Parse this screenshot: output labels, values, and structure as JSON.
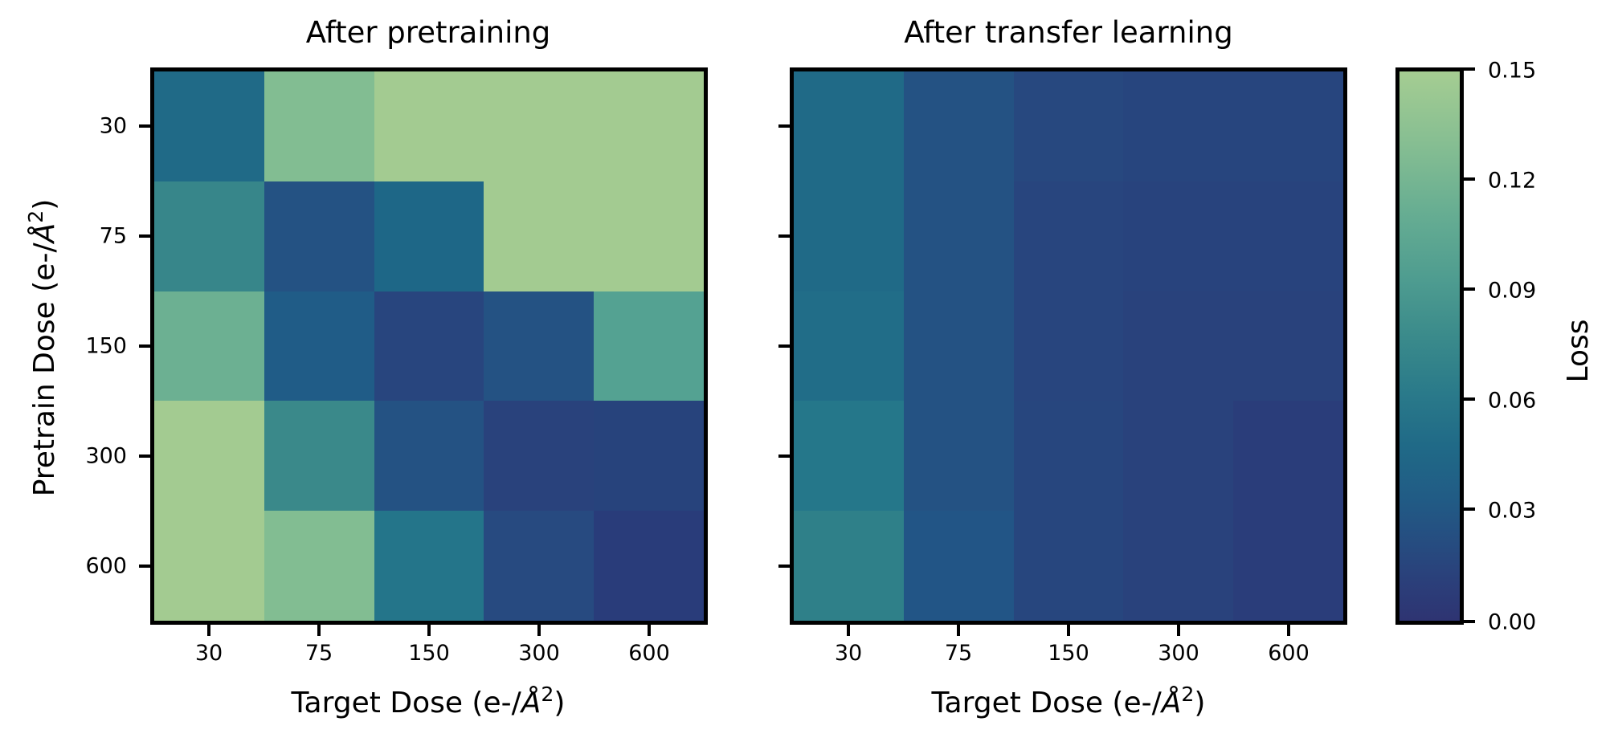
{
  "chart_data": [
    {
      "type": "heatmap",
      "title": "After pretraining",
      "xlabel": "Target Dose (e-/Å²)",
      "ylabel": "Pretrain Dose (e-/Å²)",
      "x_categories": [
        "30",
        "75",
        "150",
        "300",
        "600"
      ],
      "y_categories": [
        "30",
        "75",
        "150",
        "300",
        "600"
      ],
      "values": [
        [
          0.05,
          0.13,
          0.15,
          0.15,
          0.15
        ],
        [
          0.08,
          0.03,
          0.05,
          0.15,
          0.15
        ],
        [
          0.12,
          0.04,
          0.02,
          0.03,
          0.1
        ],
        [
          0.15,
          0.08,
          0.03,
          0.015,
          0.015
        ],
        [
          0.15,
          0.13,
          0.06,
          0.022,
          0.01
        ]
      ],
      "colors": [
        [
          "#206a87",
          "#82bd92",
          "#a3cb91",
          "#a3cb91",
          "#a3cb91"
        ],
        [
          "#37868a",
          "#245283",
          "#1e6787",
          "#a3cb91",
          "#a3cb91"
        ],
        [
          "#6cb092",
          "#205c87",
          "#28457e",
          "#245283",
          "#54a292"
        ],
        [
          "#a3cb91",
          "#3a898a",
          "#245283",
          "#29427c",
          "#27437c"
        ],
        [
          "#a3cb91",
          "#82bd92",
          "#24758a",
          "#274a80",
          "#293c7a"
        ]
      ]
    },
    {
      "type": "heatmap",
      "title": "After transfer learning",
      "xlabel": "Target Dose (e-/Å²)",
      "ylabel": "",
      "x_categories": [
        "30",
        "75",
        "150",
        "300",
        "600"
      ],
      "y_categories": [
        "30",
        "75",
        "150",
        "300",
        "600"
      ],
      "values": [
        [
          0.05,
          0.03,
          0.022,
          0.02,
          0.02
        ],
        [
          0.05,
          0.03,
          0.02,
          0.018,
          0.018
        ],
        [
          0.055,
          0.03,
          0.02,
          0.016,
          0.016
        ],
        [
          0.06,
          0.03,
          0.02,
          0.016,
          0.012
        ],
        [
          0.07,
          0.033,
          0.02,
          0.016,
          0.012
        ]
      ],
      "colors": [
        [
          "#206a87",
          "#245283",
          "#27487f",
          "#27457e",
          "#27457e"
        ],
        [
          "#206a87",
          "#245283",
          "#28457e",
          "#28437d",
          "#28437d"
        ],
        [
          "#216d88",
          "#245283",
          "#28457e",
          "#29427c",
          "#29427c"
        ],
        [
          "#25778a",
          "#245283",
          "#27467e",
          "#29427c",
          "#2a3d7a"
        ],
        [
          "#2f8089",
          "#225586",
          "#27467e",
          "#29427c",
          "#2a3d7a"
        ]
      ]
    }
  ],
  "figure": {
    "left_title": "After pretraining",
    "right_title": "After transfer learning",
    "xlabel_prefix": "Target Dose (e-/",
    "ylabel_prefix": "Pretrain Dose (e-/",
    "unit_symbol": "Å",
    "unit_exp": "2",
    "label_suffix": ")",
    "x_ticks": [
      "30",
      "75",
      "150",
      "300",
      "600"
    ],
    "y_ticks": [
      "30",
      "75",
      "150",
      "300",
      "600"
    ]
  },
  "colorbar": {
    "label": "Loss",
    "range": [
      0.0,
      0.15
    ],
    "ticks": [
      "0.15",
      "0.12",
      "0.09",
      "0.06",
      "0.03",
      "0.00"
    ],
    "cmap": "crest",
    "top_color": "#a5cd92",
    "bottom_color": "#2e3472"
  }
}
